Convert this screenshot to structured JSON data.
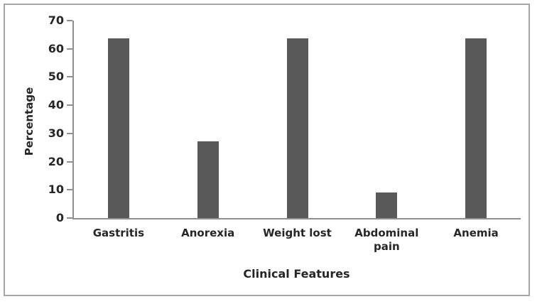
{
  "figure": {
    "background": "#ffffff",
    "border_color": "#a6a6a6"
  },
  "chart_data": {
    "type": "bar",
    "title": "",
    "categories": [
      "Gastritis",
      "Anorexia",
      "Weight lost",
      "Abdominal pain",
      "Anemia"
    ],
    "values": [
      63.6,
      27.3,
      63.6,
      9.1,
      63.6
    ],
    "xlabel": "Clinical Features",
    "ylabel": "Percentage",
    "ylim": [
      0,
      70
    ],
    "yticks": [
      0,
      10,
      20,
      30,
      40,
      50,
      60,
      70
    ],
    "grid": false,
    "legend": false,
    "bar_color": "#595959",
    "axis_color": "#8f8f8f",
    "text_color": "#262626"
  }
}
